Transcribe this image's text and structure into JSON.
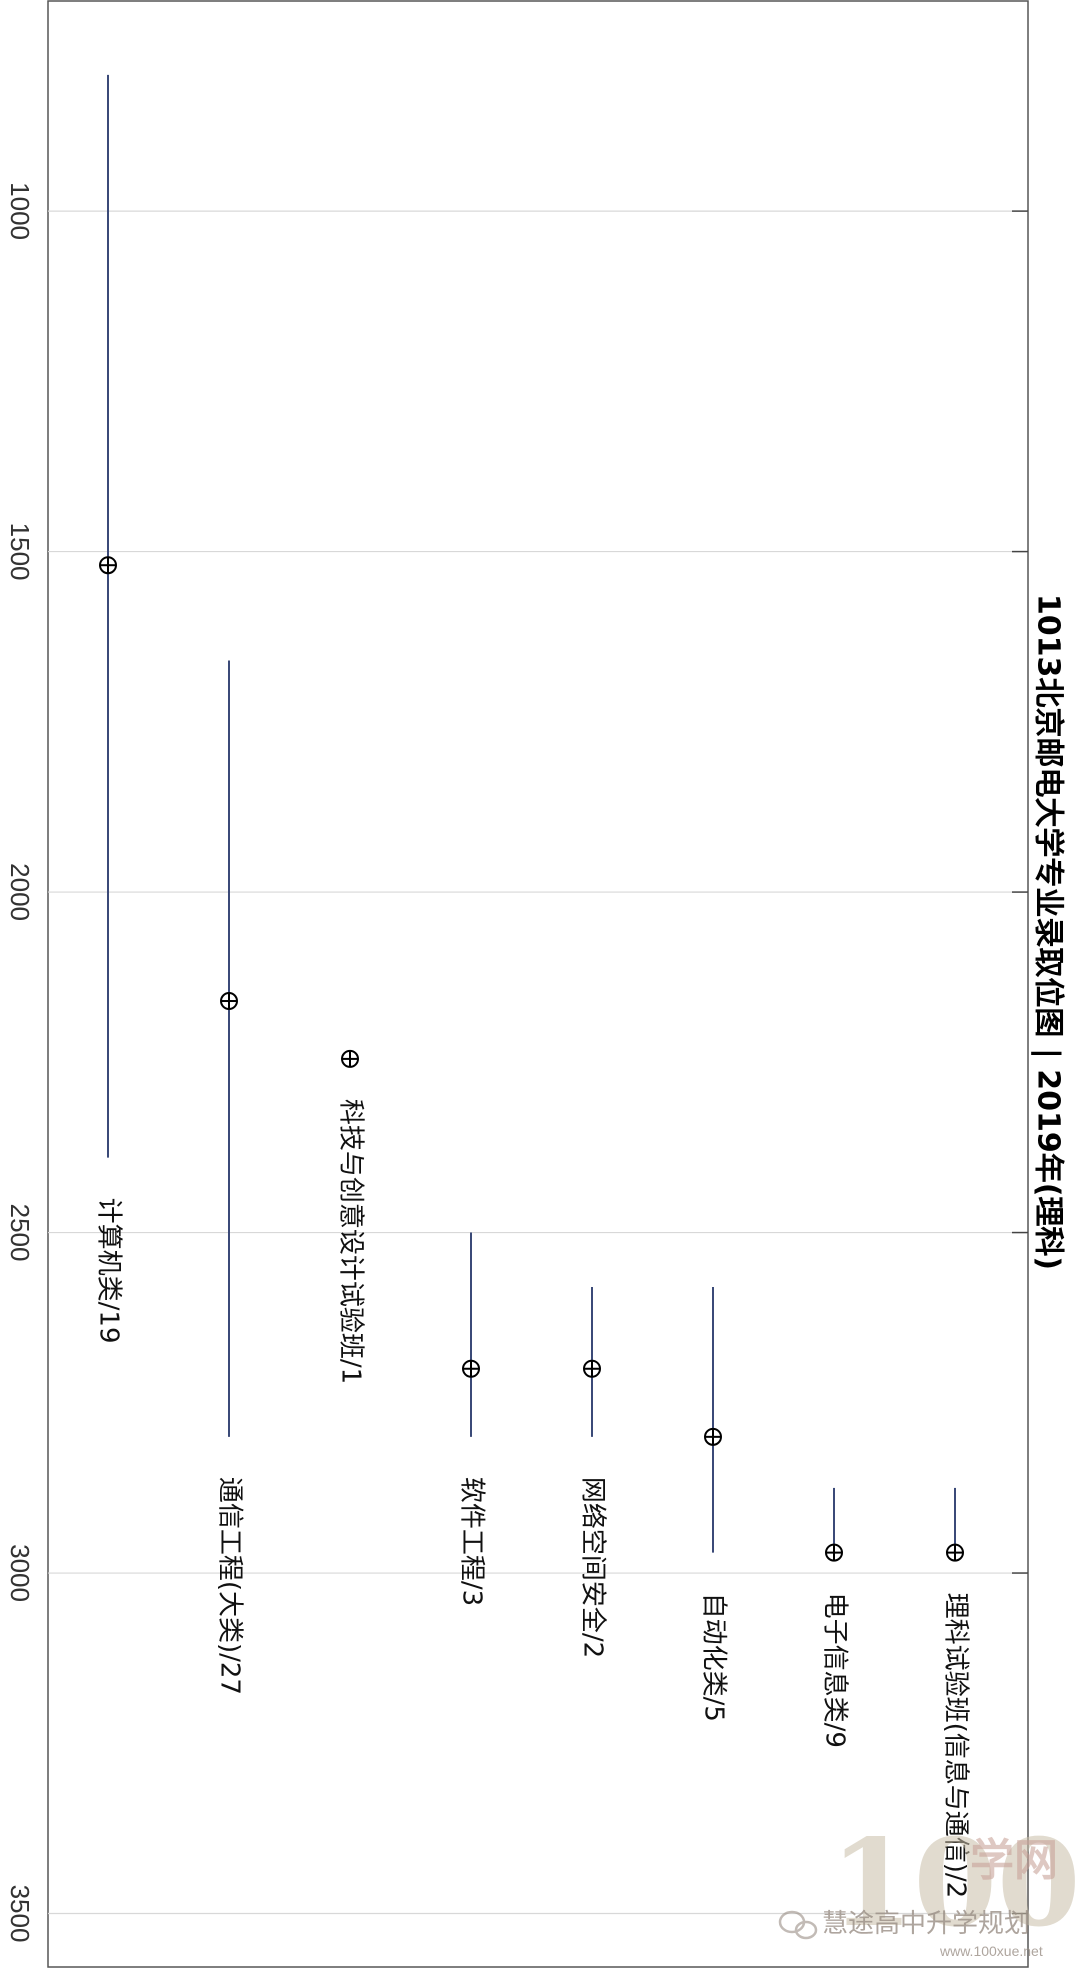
{
  "chart_data": {
    "type": "scatter",
    "title": "1013北京邮电大学专业录取位图 | 2019年(理科)",
    "xlabel": "",
    "ylabel": "",
    "yrange": [
      690,
      3580
    ],
    "yticks": [
      1000,
      1500,
      2000,
      2500,
      3000,
      3500
    ],
    "grid": true,
    "categories": [
      {
        "label": "计算机类/19",
        "min": 800,
        "max": 2390,
        "avg": 1520
      },
      {
        "label": "通信工程(大类)/27",
        "min": 1660,
        "max": 2800,
        "avg": 2160
      },
      {
        "label": "科技与创意设计试验班/1",
        "min": null,
        "max": null,
        "avg": 2245
      },
      {
        "label": "软件工程/3",
        "min": 2500,
        "max": 2800,
        "avg": 2700
      },
      {
        "label": "网络空间安全/2",
        "min": 2580,
        "max": 2800,
        "avg": 2700
      },
      {
        "label": "自动化类/5",
        "min": 2580,
        "max": 2970,
        "avg": 2800
      },
      {
        "label": "电子信息类/9",
        "min": 2875,
        "max": 2970,
        "avg": 2970
      },
      {
        "label": "理科试验班(信息与通信)/2",
        "min": 2875,
        "max": 2970,
        "avg": 2970
      }
    ],
    "colors": {
      "range_line": "#3b4a78",
      "marker": "#000000",
      "grid": "#d8d8d8"
    }
  },
  "watermark": {
    "brand": "慧途高中升学规划",
    "logo_digits": "100",
    "logo_text": "学网",
    "url": "www.100xue.net"
  }
}
